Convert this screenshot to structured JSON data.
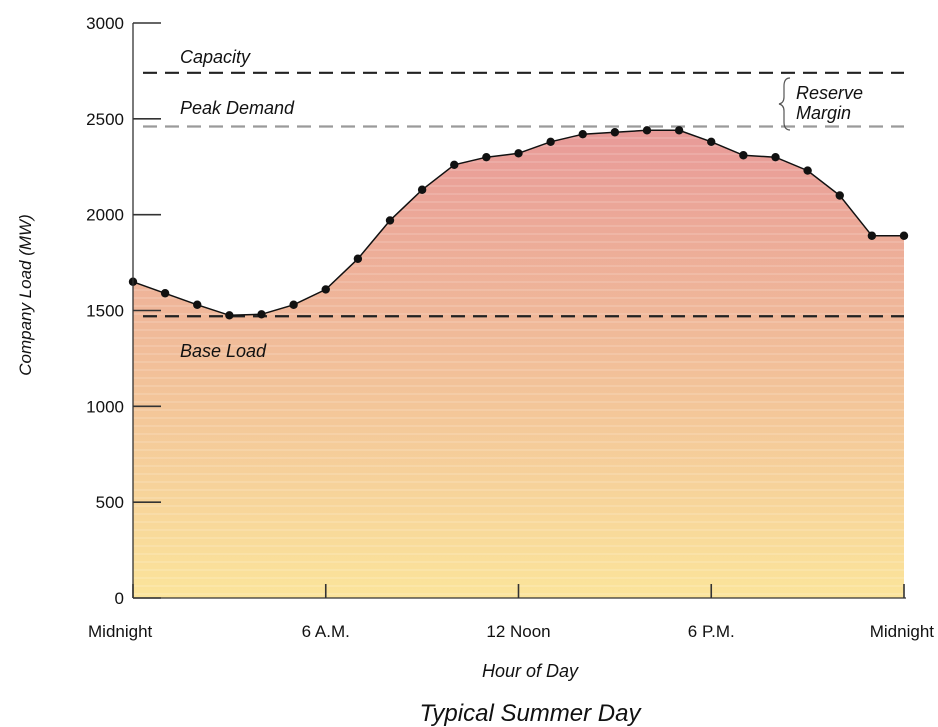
{
  "chart_data": {
    "type": "area",
    "title": "Typical Summer Day",
    "xlabel": "Hour of Day",
    "ylabel": "Company Load (MW)",
    "ylim": [
      0,
      3000
    ],
    "xlim": [
      0,
      24
    ],
    "yticks": [
      0,
      500,
      1000,
      1500,
      2000,
      2500,
      3000
    ],
    "xticks": [
      {
        "x": 0,
        "label": "Midnight"
      },
      {
        "x": 6,
        "label": "6 A.M."
      },
      {
        "x": 12,
        "label": "12 Noon"
      },
      {
        "x": 18,
        "label": "6 P.M."
      },
      {
        "x": 24,
        "label": "Midnight"
      }
    ],
    "series": [
      {
        "x": [
          0,
          1,
          2,
          3,
          4,
          5,
          6,
          7,
          8,
          9,
          10,
          11,
          12,
          13,
          14,
          15,
          16,
          17,
          18,
          19,
          20,
          21,
          22,
          23,
          24
        ],
        "values": [
          1650,
          1590,
          1530,
          1475,
          1480,
          1530,
          1610,
          1770,
          1970,
          2130,
          2260,
          2300,
          2320,
          2380,
          2420,
          2430,
          2440,
          2440,
          2380,
          2310,
          2300,
          2230,
          2100,
          1890,
          1890
        ]
      }
    ],
    "reference_lines": [
      {
        "label": "Capacity",
        "value": 2740
      },
      {
        "label": "Peak Demand",
        "value": 2460
      },
      {
        "label": "Base Load",
        "value": 1470
      }
    ],
    "annotation": {
      "line1": "Reserve",
      "line2": "Margin"
    },
    "colors": {
      "fill_top": "#e89a98",
      "fill_bottom": "#fbe49a",
      "line": "#111111",
      "dash_dark": "#222222",
      "dash_light": "#9a9a9a"
    }
  }
}
